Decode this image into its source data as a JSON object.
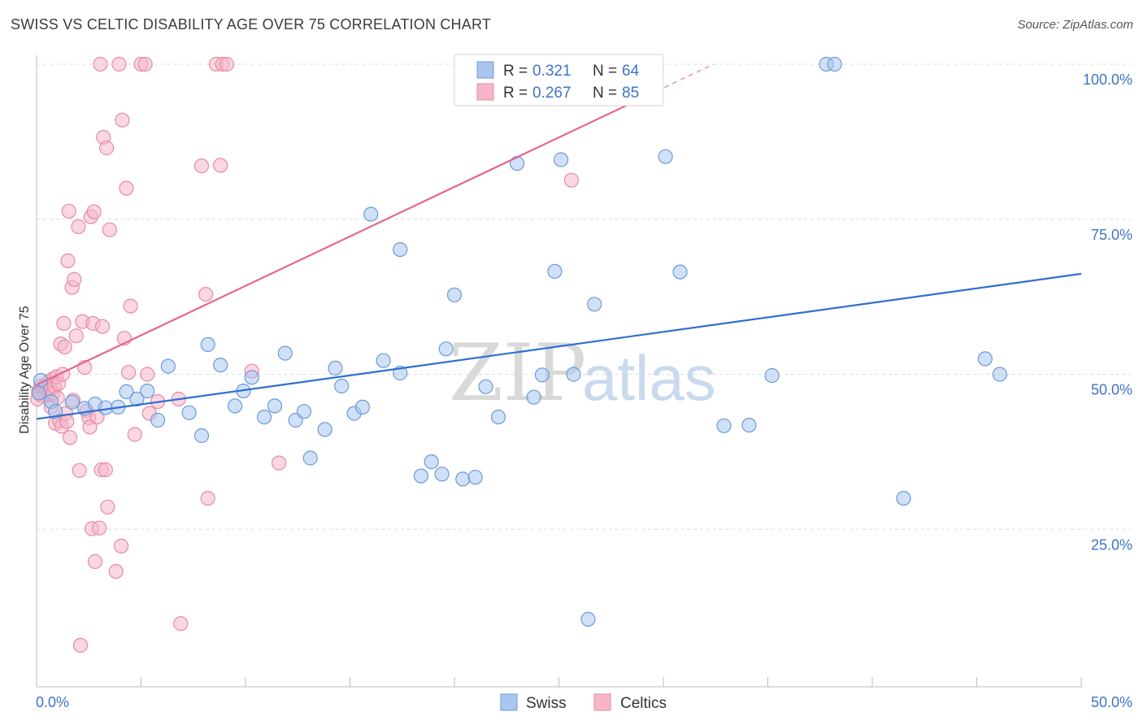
{
  "title": "SWISS VS CELTIC DISABILITY AGE OVER 75 CORRELATION CHART",
  "source": "Source: ZipAtlas.com",
  "watermark": {
    "zip": "ZIP",
    "atlas": "atlas"
  },
  "chart_data": {
    "type": "scatter",
    "title": "SWISS VS CELTIC DISABILITY AGE OVER 75 CORRELATION CHART",
    "xlabel": "",
    "ylabel": "Disability Age Over 75",
    "xlim": [
      0,
      50
    ],
    "ylim": [
      0,
      100
    ],
    "x_tick_labels": [
      "0.0%",
      "50.0%"
    ],
    "y_ticks": [
      25,
      50,
      75,
      100
    ],
    "y_tick_labels": [
      "25.0%",
      "50.0%",
      "75.0%",
      "100.0%"
    ],
    "grid": true,
    "legend_position": "top-center",
    "legend": [
      {
        "name": "Swiss",
        "r_label": "R =",
        "r": "0.321",
        "n_label": "N =",
        "n": "64"
      },
      {
        "name": "Celtics",
        "r_label": "R =",
        "r": "0.267",
        "n_label": "N =",
        "n": "85"
      }
    ],
    "colors": {
      "swiss_fill": "#a9c6ee",
      "swiss_stroke": "#6c9ad8",
      "swiss_line": "#2f6fd0",
      "celtics_fill": "#f6b6c8",
      "celtics_stroke": "#e68aa6",
      "celtics_line": "#e5668f",
      "tick_text": "#3f73c8",
      "grid": "#dcdcdc"
    },
    "series": [
      {
        "name": "Swiss",
        "trendline": {
          "x": [
            0,
            50
          ],
          "y": [
            42.8,
            66.2
          ]
        },
        "points": [
          [
            0.2,
            49.0
          ],
          [
            0.7,
            45.6
          ],
          [
            0.9,
            44.0
          ],
          [
            1.7,
            45.5
          ],
          [
            2.3,
            44.5
          ],
          [
            2.8,
            45.2
          ],
          [
            3.3,
            44.6
          ],
          [
            3.9,
            44.7
          ],
          [
            4.3,
            47.2
          ],
          [
            4.8,
            46.0
          ],
          [
            5.3,
            47.3
          ],
          [
            5.8,
            42.6
          ],
          [
            6.3,
            51.3
          ],
          [
            7.3,
            43.8
          ],
          [
            7.9,
            40.1
          ],
          [
            8.2,
            54.8
          ],
          [
            8.8,
            51.5
          ],
          [
            9.5,
            44.9
          ],
          [
            9.9,
            47.3
          ],
          [
            10.3,
            49.5
          ],
          [
            10.9,
            43.1
          ],
          [
            11.4,
            44.9
          ],
          [
            11.9,
            53.4
          ],
          [
            12.4,
            42.6
          ],
          [
            12.8,
            44.0
          ],
          [
            13.1,
            36.5
          ],
          [
            13.8,
            41.1
          ],
          [
            14.3,
            51.0
          ],
          [
            14.6,
            48.1
          ],
          [
            15.2,
            43.7
          ],
          [
            15.6,
            44.7
          ],
          [
            16.0,
            75.8
          ],
          [
            16.6,
            52.2
          ],
          [
            17.4,
            50.2
          ],
          [
            17.4,
            70.1
          ],
          [
            18.4,
            33.6
          ],
          [
            18.9,
            35.9
          ],
          [
            19.4,
            33.9
          ],
          [
            19.6,
            54.1
          ],
          [
            20.0,
            62.8
          ],
          [
            20.4,
            33.1
          ],
          [
            21.0,
            33.4
          ],
          [
            21.5,
            48.0
          ],
          [
            22.1,
            43.1
          ],
          [
            23.0,
            84.0
          ],
          [
            23.8,
            46.3
          ],
          [
            24.2,
            49.9
          ],
          [
            24.8,
            66.6
          ],
          [
            25.1,
            84.6
          ],
          [
            25.7,
            50.0
          ],
          [
            26.4,
            10.5
          ],
          [
            26.7,
            61.3
          ],
          [
            27.5,
            100.0
          ],
          [
            30.1,
            85.1
          ],
          [
            30.8,
            66.5
          ],
          [
            32.9,
            41.7
          ],
          [
            34.1,
            41.8
          ],
          [
            35.2,
            49.8
          ],
          [
            37.8,
            100.0
          ],
          [
            38.2,
            100.0
          ],
          [
            41.5,
            30.0
          ],
          [
            45.4,
            52.5
          ],
          [
            46.1,
            50.0
          ],
          [
            0.1,
            47.0
          ]
        ]
      },
      {
        "name": "Celtics",
        "trendline": {
          "x": [
            0,
            32.4
          ],
          "y": [
            48.3,
            100.0
          ]
        },
        "points": [
          [
            0.1,
            47.3
          ],
          [
            0.15,
            46.8
          ],
          [
            0.2,
            48.1
          ],
          [
            0.25,
            46.5
          ],
          [
            0.3,
            47.5
          ],
          [
            0.35,
            47.9
          ],
          [
            0.4,
            46.9
          ],
          [
            0.45,
            48.4
          ],
          [
            0.5,
            47.2
          ],
          [
            0.55,
            46.6
          ],
          [
            0.6,
            48.8
          ],
          [
            0.65,
            47.6
          ],
          [
            0.7,
            44.7
          ],
          [
            0.75,
            49.2
          ],
          [
            0.8,
            47.0
          ],
          [
            0.85,
            48.0
          ],
          [
            0.9,
            42.1
          ],
          [
            0.95,
            49.6
          ],
          [
            1.0,
            46.2
          ],
          [
            1.05,
            48.5
          ],
          [
            1.1,
            42.5
          ],
          [
            1.15,
            54.9
          ],
          [
            1.2,
            41.6
          ],
          [
            1.25,
            50.0
          ],
          [
            1.3,
            58.2
          ],
          [
            1.35,
            54.4
          ],
          [
            1.4,
            43.7
          ],
          [
            1.45,
            42.4
          ],
          [
            1.5,
            68.3
          ],
          [
            1.55,
            76.3
          ],
          [
            1.6,
            39.8
          ],
          [
            1.7,
            64.0
          ],
          [
            1.75,
            45.8
          ],
          [
            1.8,
            65.3
          ],
          [
            1.9,
            56.2
          ],
          [
            2.0,
            73.8
          ],
          [
            2.05,
            34.5
          ],
          [
            2.1,
            6.3
          ],
          [
            2.2,
            58.5
          ],
          [
            2.3,
            51.1
          ],
          [
            2.4,
            44.1
          ],
          [
            2.5,
            43.0
          ],
          [
            2.55,
            41.5
          ],
          [
            2.6,
            75.4
          ],
          [
            2.65,
            25.1
          ],
          [
            2.7,
            58.2
          ],
          [
            2.75,
            76.2
          ],
          [
            2.8,
            19.8
          ],
          [
            2.9,
            43.1
          ],
          [
            3.0,
            25.2
          ],
          [
            3.05,
            100.0
          ],
          [
            3.1,
            34.6
          ],
          [
            3.15,
            57.7
          ],
          [
            3.2,
            88.2
          ],
          [
            3.3,
            34.6
          ],
          [
            3.35,
            86.5
          ],
          [
            3.4,
            28.6
          ],
          [
            3.5,
            73.3
          ],
          [
            3.8,
            18.2
          ],
          [
            3.95,
            100.0
          ],
          [
            4.05,
            22.3
          ],
          [
            4.1,
            91.0
          ],
          [
            4.2,
            55.8
          ],
          [
            4.3,
            80.0
          ],
          [
            4.4,
            50.3
          ],
          [
            4.5,
            61.0
          ],
          [
            4.7,
            40.3
          ],
          [
            5.0,
            100.0
          ],
          [
            5.2,
            100.0
          ],
          [
            5.3,
            50.0
          ],
          [
            5.4,
            43.7
          ],
          [
            5.8,
            45.6
          ],
          [
            6.8,
            46.0
          ],
          [
            6.9,
            9.8
          ],
          [
            7.9,
            83.6
          ],
          [
            8.1,
            62.9
          ],
          [
            8.2,
            30.0
          ],
          [
            8.6,
            100.0
          ],
          [
            8.8,
            83.7
          ],
          [
            8.9,
            100.0
          ],
          [
            9.1,
            100.0
          ],
          [
            10.3,
            50.5
          ],
          [
            11.6,
            35.7
          ],
          [
            25.6,
            81.3
          ],
          [
            0.05,
            46.0
          ]
        ]
      }
    ]
  }
}
